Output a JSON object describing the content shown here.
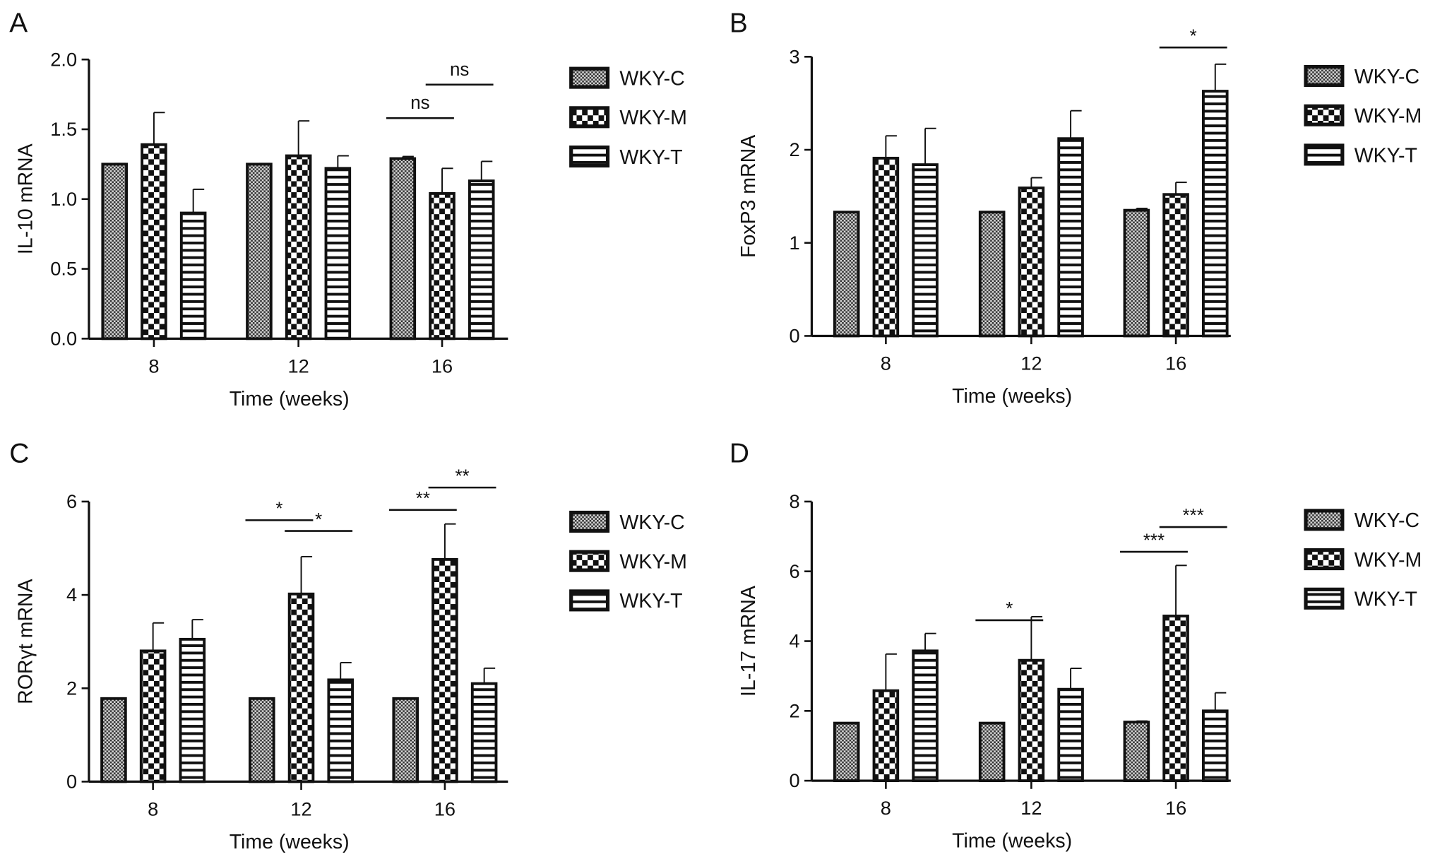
{
  "legend": [
    "WKY-C",
    "WKY-M",
    "WKY-T"
  ],
  "colors": {
    "ink": "#111111",
    "fill_c": "#8a8a8a"
  },
  "chart_data": [
    {
      "type": "bar",
      "panel": "A",
      "xlabel": "Time (weeks)",
      "ylabel": "IL-10 mRNA",
      "categories": [
        "8",
        "12",
        "16"
      ],
      "ylim": [
        0,
        2.0
      ],
      "yticks": [
        0,
        0.5,
        1.0,
        1.5,
        2.0
      ],
      "ytick_labels": [
        "0.0",
        "0.5",
        "1.0",
        "1.5",
        "2.0"
      ],
      "series": [
        {
          "name": "WKY-C",
          "values": [
            1.25,
            1.25,
            1.29
          ],
          "errors": [
            0.005,
            0.005,
            0.015
          ]
        },
        {
          "name": "WKY-M",
          "values": [
            1.39,
            1.31,
            1.04
          ],
          "errors": [
            0.23,
            0.25,
            0.18
          ]
        },
        {
          "name": "WKY-T",
          "values": [
            0.9,
            1.22,
            1.13
          ],
          "errors": [
            0.17,
            0.09,
            0.14
          ]
        }
      ],
      "annotations": [
        {
          "group": 2,
          "from": 0,
          "to": 1,
          "y": 1.58,
          "label": "ns"
        },
        {
          "group": 2,
          "from": 1,
          "to": 2,
          "y": 1.82,
          "label": "ns"
        }
      ]
    },
    {
      "type": "bar",
      "panel": "B",
      "xlabel": "Time (weeks)",
      "ylabel": "FoxP3 mRNA",
      "categories": [
        "8",
        "12",
        "16"
      ],
      "ylim": [
        0,
        3
      ],
      "yticks": [
        0,
        1,
        2,
        3
      ],
      "ytick_labels": [
        "0",
        "1",
        "2",
        "3"
      ],
      "series": [
        {
          "name": "WKY-C",
          "values": [
            1.33,
            1.33,
            1.35
          ],
          "errors": [
            0,
            0,
            0.02
          ]
        },
        {
          "name": "WKY-M",
          "values": [
            1.91,
            1.59,
            1.52
          ],
          "errors": [
            0.24,
            0.11,
            0.13
          ]
        },
        {
          "name": "WKY-T",
          "values": [
            1.84,
            2.12,
            2.63
          ],
          "errors": [
            0.39,
            0.3,
            0.29
          ]
        }
      ],
      "annotations": [
        {
          "group": 2,
          "from": 1,
          "to": 2,
          "y": 3.1,
          "label": "*"
        }
      ]
    },
    {
      "type": "bar",
      "panel": "C",
      "xlabel": "Time (weeks)",
      "ylabel": "RORγt mRNA",
      "categories": [
        "8",
        "12",
        "16"
      ],
      "ylim": [
        0,
        6
      ],
      "yticks": [
        0,
        2,
        4,
        6
      ],
      "ytick_labels": [
        "0",
        "2",
        "4",
        "6"
      ],
      "series": [
        {
          "name": "WKY-C",
          "values": [
            1.78,
            1.78,
            1.78
          ],
          "errors": [
            0,
            0,
            0
          ]
        },
        {
          "name": "WKY-M",
          "values": [
            2.8,
            4.02,
            4.76
          ],
          "errors": [
            0.6,
            0.8,
            0.76
          ]
        },
        {
          "name": "WKY-T",
          "values": [
            3.05,
            2.18,
            2.1
          ],
          "errors": [
            0.42,
            0.37,
            0.33
          ]
        }
      ],
      "annotations": [
        {
          "group": 1,
          "from": 0,
          "to": 1,
          "y": 5.6,
          "label": "*"
        },
        {
          "group": 1,
          "from": 1,
          "to": 2,
          "y": 5.37,
          "label": "*"
        },
        {
          "group": 2,
          "from": 0,
          "to": 1,
          "y": 5.82,
          "label": "**"
        },
        {
          "group": 2,
          "from": 1,
          "to": 2,
          "y": 6.3,
          "label": "**"
        }
      ]
    },
    {
      "type": "bar",
      "panel": "D",
      "xlabel": "Time (weeks)",
      "ylabel": "IL-17 mRNA",
      "categories": [
        "8",
        "12",
        "16"
      ],
      "ylim": [
        0,
        8
      ],
      "yticks": [
        0,
        2,
        4,
        6,
        8
      ],
      "ytick_labels": [
        "0",
        "2",
        "4",
        "6",
        "8"
      ],
      "series": [
        {
          "name": "WKY-C",
          "values": [
            1.65,
            1.65,
            1.68
          ],
          "errors": [
            0,
            0,
            0.03
          ]
        },
        {
          "name": "WKY-M",
          "values": [
            2.58,
            3.45,
            4.72
          ],
          "errors": [
            1.05,
            1.25,
            1.45
          ]
        },
        {
          "name": "WKY-T",
          "values": [
            3.72,
            2.62,
            2.0
          ],
          "errors": [
            0.5,
            0.6,
            0.52
          ]
        }
      ],
      "annotations": [
        {
          "group": 1,
          "from": 0,
          "to": 1,
          "y": 4.6,
          "label": "*"
        },
        {
          "group": 2,
          "from": 0,
          "to": 1,
          "y": 6.56,
          "label": "***"
        },
        {
          "group": 2,
          "from": 1,
          "to": 2,
          "y": 7.27,
          "label": "***"
        }
      ]
    }
  ]
}
